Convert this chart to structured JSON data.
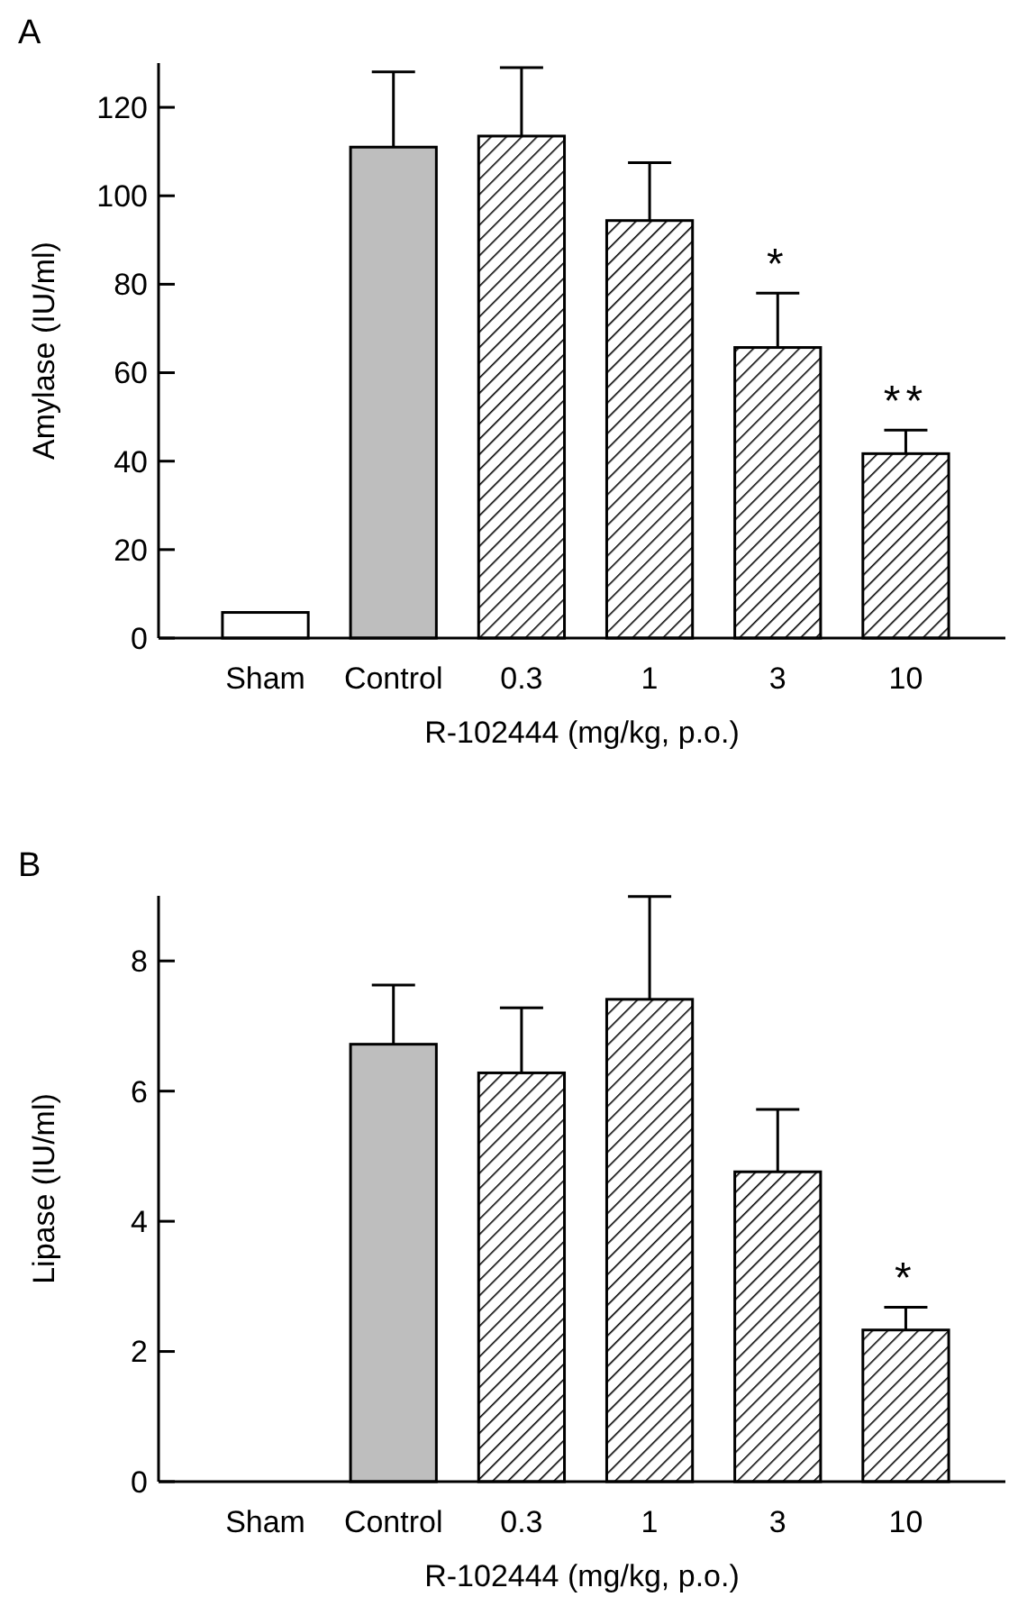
{
  "chart_data": [
    {
      "type": "bar",
      "title": "A",
      "xlabel": "R-102444 (mg/kg, p.o.)",
      "ylabel": "Amylase (IU/ml)",
      "categories": [
        "Sham",
        "Control",
        "0.3",
        "1",
        "3",
        "10"
      ],
      "values": [
        5.8,
        111,
        113.5,
        94.4,
        65.7,
        41.7
      ],
      "colors": [
        "#ffffff",
        "#bebebe",
        "#000000",
        "#000000",
        "#000000",
        "#000000"
      ],
      "errors": [
        null,
        [
          111,
          128
        ],
        [
          113.5,
          129
        ],
        [
          94.4,
          107.5
        ],
        [
          65.7,
          78
        ],
        [
          41.7,
          47
        ]
      ],
      "ylim": [
        0,
        130
      ],
      "yticks": [
        0,
        20,
        40,
        60,
        80,
        100,
        120
      ],
      "grid": false,
      "annotations": [
        {
          "text": "*",
          "x": "3",
          "y": 78
        },
        {
          "text": "**",
          "x": "10",
          "y": 47
        }
      ]
    },
    {
      "type": "bar",
      "title": "B",
      "xlabel": "R-102444 (mg/kg, p.o.)",
      "ylabel": "Lipase (IU/ml)",
      "categories": [
        "Sham",
        "Control",
        "0.3",
        "1",
        "3",
        "10"
      ],
      "values": [
        0,
        6.72,
        6.28,
        7.41,
        4.76,
        2.33
      ],
      "colors": [
        "#ffffff",
        "#bebebe",
        "#000000",
        "#000000",
        "#000000",
        "#000000"
      ],
      "errors": [
        null,
        [
          6.72,
          7.63
        ],
        [
          6.28,
          7.28
        ],
        [
          7.41,
          8.99
        ],
        [
          4.76,
          5.72
        ],
        [
          2.33,
          2.68
        ]
      ],
      "ylim": [
        0,
        9
      ],
      "yticks": [
        0,
        2,
        4,
        6,
        8
      ],
      "grid": false,
      "annotations": [
        {
          "text": "*",
          "x": "10",
          "y": 2.68
        }
      ]
    }
  ]
}
